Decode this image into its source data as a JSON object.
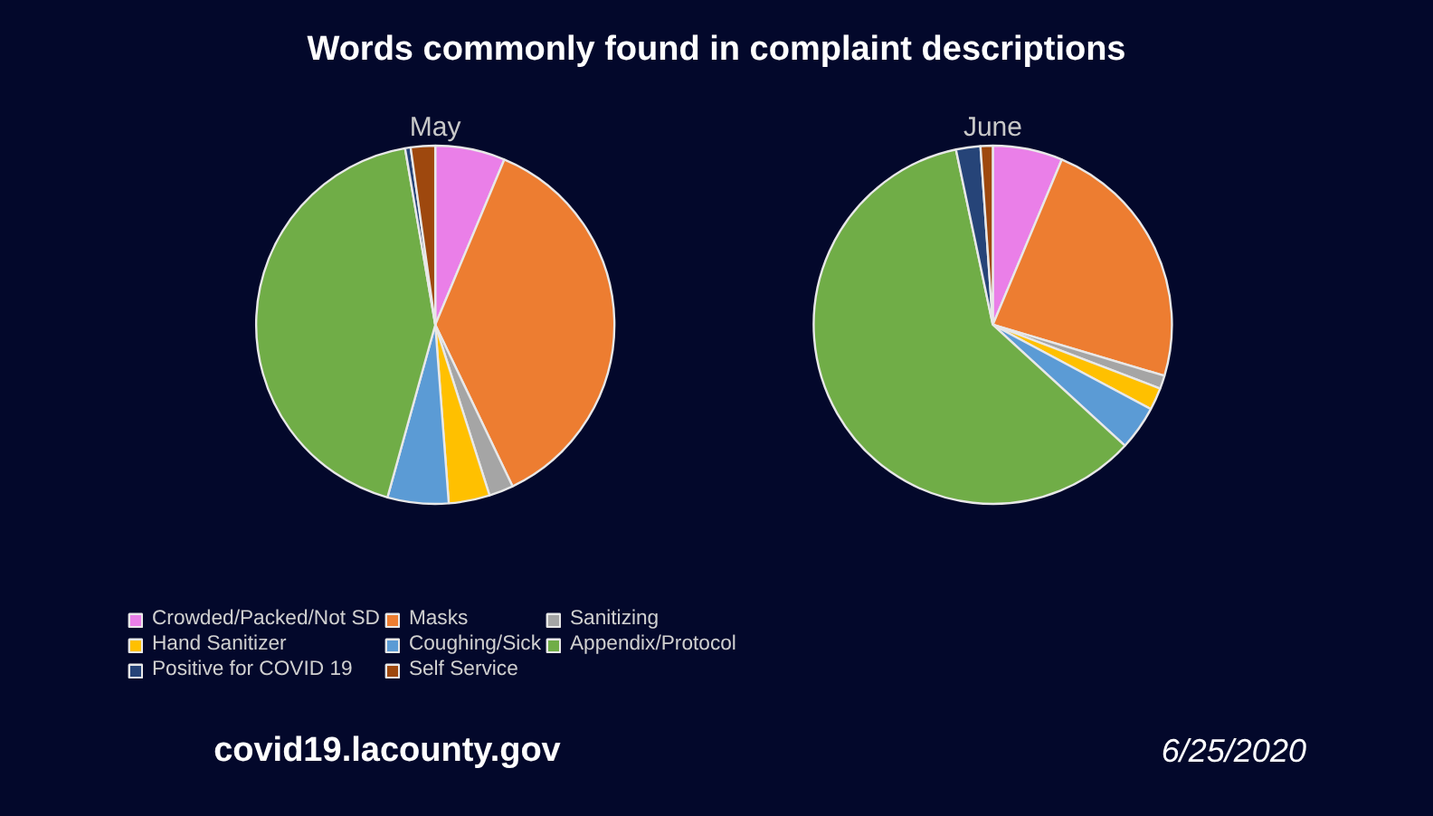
{
  "chart_data": [
    {
      "type": "pie",
      "title": "Words commonly found in complaint descriptions",
      "subtitle": "May",
      "categories": [
        "Crowded/Packed/Not SD",
        "Masks",
        "Sanitizing",
        "Hand Sanitizer",
        "Coughing/Sick",
        "Appendix/Protocol",
        "Positive for COVID 19",
        "Self Service"
      ],
      "values": [
        6.3,
        36.6,
        2.2,
        3.7,
        5.5,
        43.0,
        0.5,
        2.2
      ],
      "colors": [
        "#ea7fe8",
        "#ed7d31",
        "#a5a5a5",
        "#ffc000",
        "#5b9bd5",
        "#70ad47",
        "#264478",
        "#9e480e"
      ],
      "legend": "bottom",
      "annotations": [
        "covid19.lacounty.gov"
      ]
    },
    {
      "type": "pie",
      "subtitle": "June",
      "categories": [
        null,
        null,
        null,
        null,
        null,
        null,
        null,
        null
      ],
      "values": [
        6.3,
        23.3,
        1.2,
        2.0,
        4.0,
        59.9,
        2.2,
        1.1
      ],
      "colors": [
        "#ea7fe8",
        "#ed7d31",
        "#a5a5a5",
        "#ffc000",
        "#5b9bd5",
        "#70ad47",
        "#264478",
        "#9e480e"
      ],
      "annotations": [
        "6/25/2020"
      ]
    }
  ]
}
